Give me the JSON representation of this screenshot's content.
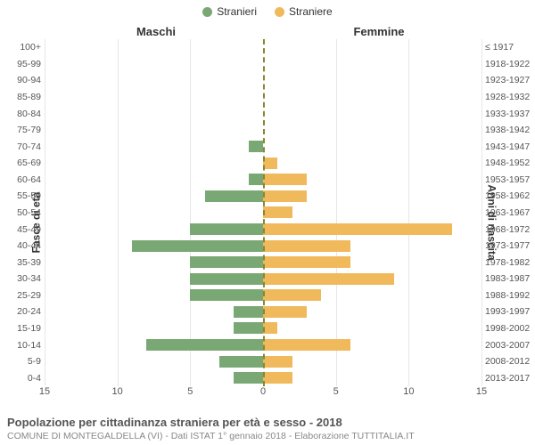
{
  "legend": {
    "male": {
      "label": "Stranieri",
      "color": "#7aa874"
    },
    "female": {
      "label": "Straniere",
      "color": "#f0b95b"
    }
  },
  "headers": {
    "male": "Maschi",
    "female": "Femmine"
  },
  "axis_titles": {
    "left": "Fasce di età",
    "right": "Anni di nascita"
  },
  "chart": {
    "type": "population-pyramid",
    "xmax": 15,
    "xtick_step": 5,
    "xticks": [
      "15",
      "10",
      "5",
      "0",
      "5",
      "10",
      "15"
    ],
    "background_color": "#ffffff",
    "grid_color": "#e6e6e6",
    "center_line_color": "#888833",
    "male_color": "#7aa874",
    "female_color": "#f0b95b",
    "label_fontsize": 10.5,
    "axis_title_fontsize": 12,
    "bar_height_ratio": 0.7,
    "rows": [
      {
        "age": "100+",
        "birth": "≤ 1917",
        "m": 0,
        "f": 0
      },
      {
        "age": "95-99",
        "birth": "1918-1922",
        "m": 0,
        "f": 0
      },
      {
        "age": "90-94",
        "birth": "1923-1927",
        "m": 0,
        "f": 0
      },
      {
        "age": "85-89",
        "birth": "1928-1932",
        "m": 0,
        "f": 0
      },
      {
        "age": "80-84",
        "birth": "1933-1937",
        "m": 0,
        "f": 0
      },
      {
        "age": "75-79",
        "birth": "1938-1942",
        "m": 0,
        "f": 0
      },
      {
        "age": "70-74",
        "birth": "1943-1947",
        "m": 1,
        "f": 0
      },
      {
        "age": "65-69",
        "birth": "1948-1952",
        "m": 0,
        "f": 1
      },
      {
        "age": "60-64",
        "birth": "1953-1957",
        "m": 1,
        "f": 3
      },
      {
        "age": "55-59",
        "birth": "1958-1962",
        "m": 4,
        "f": 3
      },
      {
        "age": "50-54",
        "birth": "1963-1967",
        "m": 0,
        "f": 2
      },
      {
        "age": "45-49",
        "birth": "1968-1972",
        "m": 5,
        "f": 13
      },
      {
        "age": "40-44",
        "birth": "1973-1977",
        "m": 9,
        "f": 6
      },
      {
        "age": "35-39",
        "birth": "1978-1982",
        "m": 5,
        "f": 6
      },
      {
        "age": "30-34",
        "birth": "1983-1987",
        "m": 5,
        "f": 9
      },
      {
        "age": "25-29",
        "birth": "1988-1992",
        "m": 5,
        "f": 4
      },
      {
        "age": "20-24",
        "birth": "1993-1997",
        "m": 2,
        "f": 3
      },
      {
        "age": "15-19",
        "birth": "1998-2002",
        "m": 2,
        "f": 1
      },
      {
        "age": "10-14",
        "birth": "2003-2007",
        "m": 8,
        "f": 6
      },
      {
        "age": "5-9",
        "birth": "2008-2012",
        "m": 3,
        "f": 2
      },
      {
        "age": "0-4",
        "birth": "2013-2017",
        "m": 2,
        "f": 2
      }
    ]
  },
  "caption": {
    "title": "Popolazione per cittadinanza straniera per età e sesso - 2018",
    "sub": "COMUNE DI MONTEGALDELLA (VI) - Dati ISTAT 1° gennaio 2018 - Elaborazione TUTTITALIA.IT"
  }
}
